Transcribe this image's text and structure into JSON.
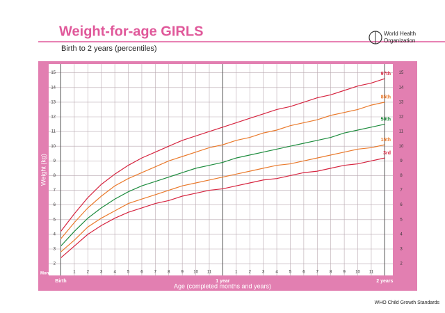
{
  "chart_data": {
    "type": "line",
    "title": "Weight-for-age GIRLS",
    "subtitle": "Birth to 2 years (percentiles)",
    "logo_lines": [
      "World Health",
      "Organization"
    ],
    "footer": "WHO Child Growth Standards",
    "x_label": "Age (completed months and years)",
    "x_unit_label": "Months",
    "y_label": "Weight (kg)",
    "x": [
      0,
      1,
      2,
      3,
      4,
      5,
      6,
      7,
      8,
      9,
      10,
      11,
      12,
      13,
      14,
      15,
      16,
      17,
      18,
      19,
      20,
      21,
      22,
      23,
      24
    ],
    "xlim": [
      -0.9,
      24.6
    ],
    "xticks": [
      {
        "value": 0,
        "label": "Birth"
      },
      1,
      2,
      3,
      4,
      5,
      6,
      7,
      8,
      9,
      10,
      11,
      {
        "value": 12,
        "label": "1 year"
      },
      {
        "value": 13,
        "label": "1"
      },
      {
        "value": 14,
        "label": "2"
      },
      {
        "value": 15,
        "label": "3"
      },
      {
        "value": 16,
        "label": "4"
      },
      {
        "value": 17,
        "label": "5"
      },
      {
        "value": 18,
        "label": "6"
      },
      {
        "value": 19,
        "label": "7"
      },
      {
        "value": 20,
        "label": "8"
      },
      {
        "value": 21,
        "label": "9"
      },
      {
        "value": 22,
        "label": "10"
      },
      {
        "value": 23,
        "label": "11"
      },
      {
        "value": 24,
        "label": "2 years"
      }
    ],
    "ylim": [
      1.2,
      15.6
    ],
    "yticks": [
      2,
      3,
      4,
      5,
      6,
      7,
      8,
      9,
      10,
      11,
      12,
      13,
      14,
      15
    ],
    "grid": true,
    "series": [
      {
        "name": "97th",
        "color": "#d6243f",
        "values": [
          4.2,
          5.4,
          6.5,
          7.4,
          8.1,
          8.7,
          9.2,
          9.6,
          10.0,
          10.4,
          10.7,
          11.0,
          11.3,
          11.6,
          11.9,
          12.2,
          12.5,
          12.7,
          13.0,
          13.3,
          13.5,
          13.8,
          14.1,
          14.3,
          14.6
        ]
      },
      {
        "name": "85th",
        "color": "#ea7a2c",
        "values": [
          3.7,
          4.8,
          5.8,
          6.6,
          7.3,
          7.8,
          8.2,
          8.6,
          9.0,
          9.3,
          9.6,
          9.9,
          10.1,
          10.4,
          10.6,
          10.9,
          11.1,
          11.4,
          11.6,
          11.8,
          12.1,
          12.3,
          12.5,
          12.8,
          13.0
        ]
      },
      {
        "name": "50th",
        "color": "#1e8c3e",
        "values": [
          3.2,
          4.2,
          5.1,
          5.8,
          6.4,
          6.9,
          7.3,
          7.6,
          7.9,
          8.2,
          8.5,
          8.7,
          8.9,
          9.2,
          9.4,
          9.6,
          9.8,
          10.0,
          10.2,
          10.4,
          10.6,
          10.9,
          11.1,
          11.3,
          11.5
        ]
      },
      {
        "name": "15th",
        "color": "#ea7a2c",
        "values": [
          2.8,
          3.6,
          4.5,
          5.1,
          5.6,
          6.1,
          6.4,
          6.7,
          7.0,
          7.3,
          7.5,
          7.7,
          7.9,
          8.1,
          8.3,
          8.5,
          8.7,
          8.8,
          9.0,
          9.2,
          9.4,
          9.6,
          9.8,
          9.9,
          10.1
        ]
      },
      {
        "name": "3rd",
        "color": "#d6243f",
        "values": [
          2.4,
          3.2,
          4.0,
          4.6,
          5.1,
          5.5,
          5.8,
          6.1,
          6.3,
          6.6,
          6.8,
          7.0,
          7.1,
          7.3,
          7.5,
          7.7,
          7.8,
          8.0,
          8.2,
          8.3,
          8.5,
          8.7,
          8.8,
          9.0,
          9.2
        ]
      }
    ]
  }
}
